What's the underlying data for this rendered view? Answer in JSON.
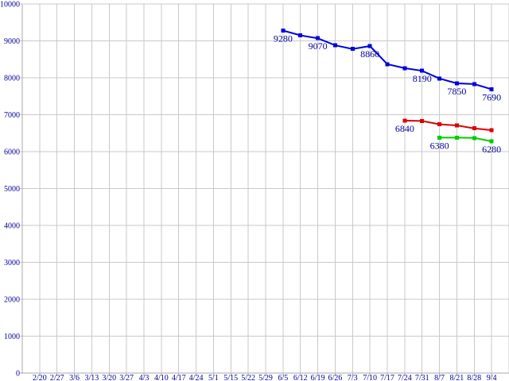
{
  "chart_data": {
    "type": "line",
    "title": "",
    "xlabel": "",
    "ylabel": "",
    "grid": true,
    "legend_position": "none",
    "ylim": [
      0,
      10000
    ],
    "y_tick_step": 1000,
    "y_tick_labels": [
      "0",
      "1000",
      "2000",
      "3000",
      "4000",
      "5000",
      "6000",
      "7000",
      "8000",
      "9000",
      "10000"
    ],
    "categories": [
      "2/20",
      "2/27",
      "3/6",
      "3/13",
      "3/20",
      "3/27",
      "4/3",
      "4/10",
      "4/17",
      "4/24",
      "5/1",
      "5/15",
      "5/22",
      "5/29",
      "6/5",
      "6/12",
      "6/19",
      "6/26",
      "7/3",
      "7/10",
      "7/17",
      "7/24",
      "7/31",
      "8/7",
      "8/21",
      "8/28",
      "9/4"
    ],
    "colors": {
      "background": "#ffffff",
      "grid": "#c9c9c9",
      "axis": "#a8a8a8",
      "text": "#000099"
    },
    "series": [
      {
        "name": "series-blue",
        "color": "#0000dd",
        "start_category": "6/5",
        "start_index": 14,
        "values": [
          9280,
          9150,
          9070,
          8880,
          8780,
          8860,
          8370,
          8260,
          8190,
          7980,
          7850,
          7830,
          7690
        ],
        "labeled_points": [
          {
            "category": "6/5",
            "label": "9280"
          },
          {
            "category": "6/19",
            "label": "9070"
          },
          {
            "category": "7/10",
            "label": "8860"
          },
          {
            "category": "7/31",
            "label": "8190"
          },
          {
            "category": "8/21",
            "label": "7850"
          },
          {
            "category": "9/4",
            "label": "7690"
          }
        ]
      },
      {
        "name": "series-red",
        "color": "#dd0000",
        "start_category": "7/24",
        "start_index": 21,
        "values": [
          6840,
          6830,
          6740,
          6710,
          6630,
          6580
        ],
        "labeled_points": [
          {
            "category": "7/24",
            "label": "6840"
          }
        ]
      },
      {
        "name": "series-green",
        "color": "#00cc00",
        "start_category": "8/7",
        "start_index": 23,
        "values": [
          6380,
          6380,
          6370,
          6280
        ],
        "labeled_points": [
          {
            "category": "8/7",
            "label": "6380"
          },
          {
            "category": "9/4",
            "label": "6280"
          }
        ]
      }
    ]
  }
}
